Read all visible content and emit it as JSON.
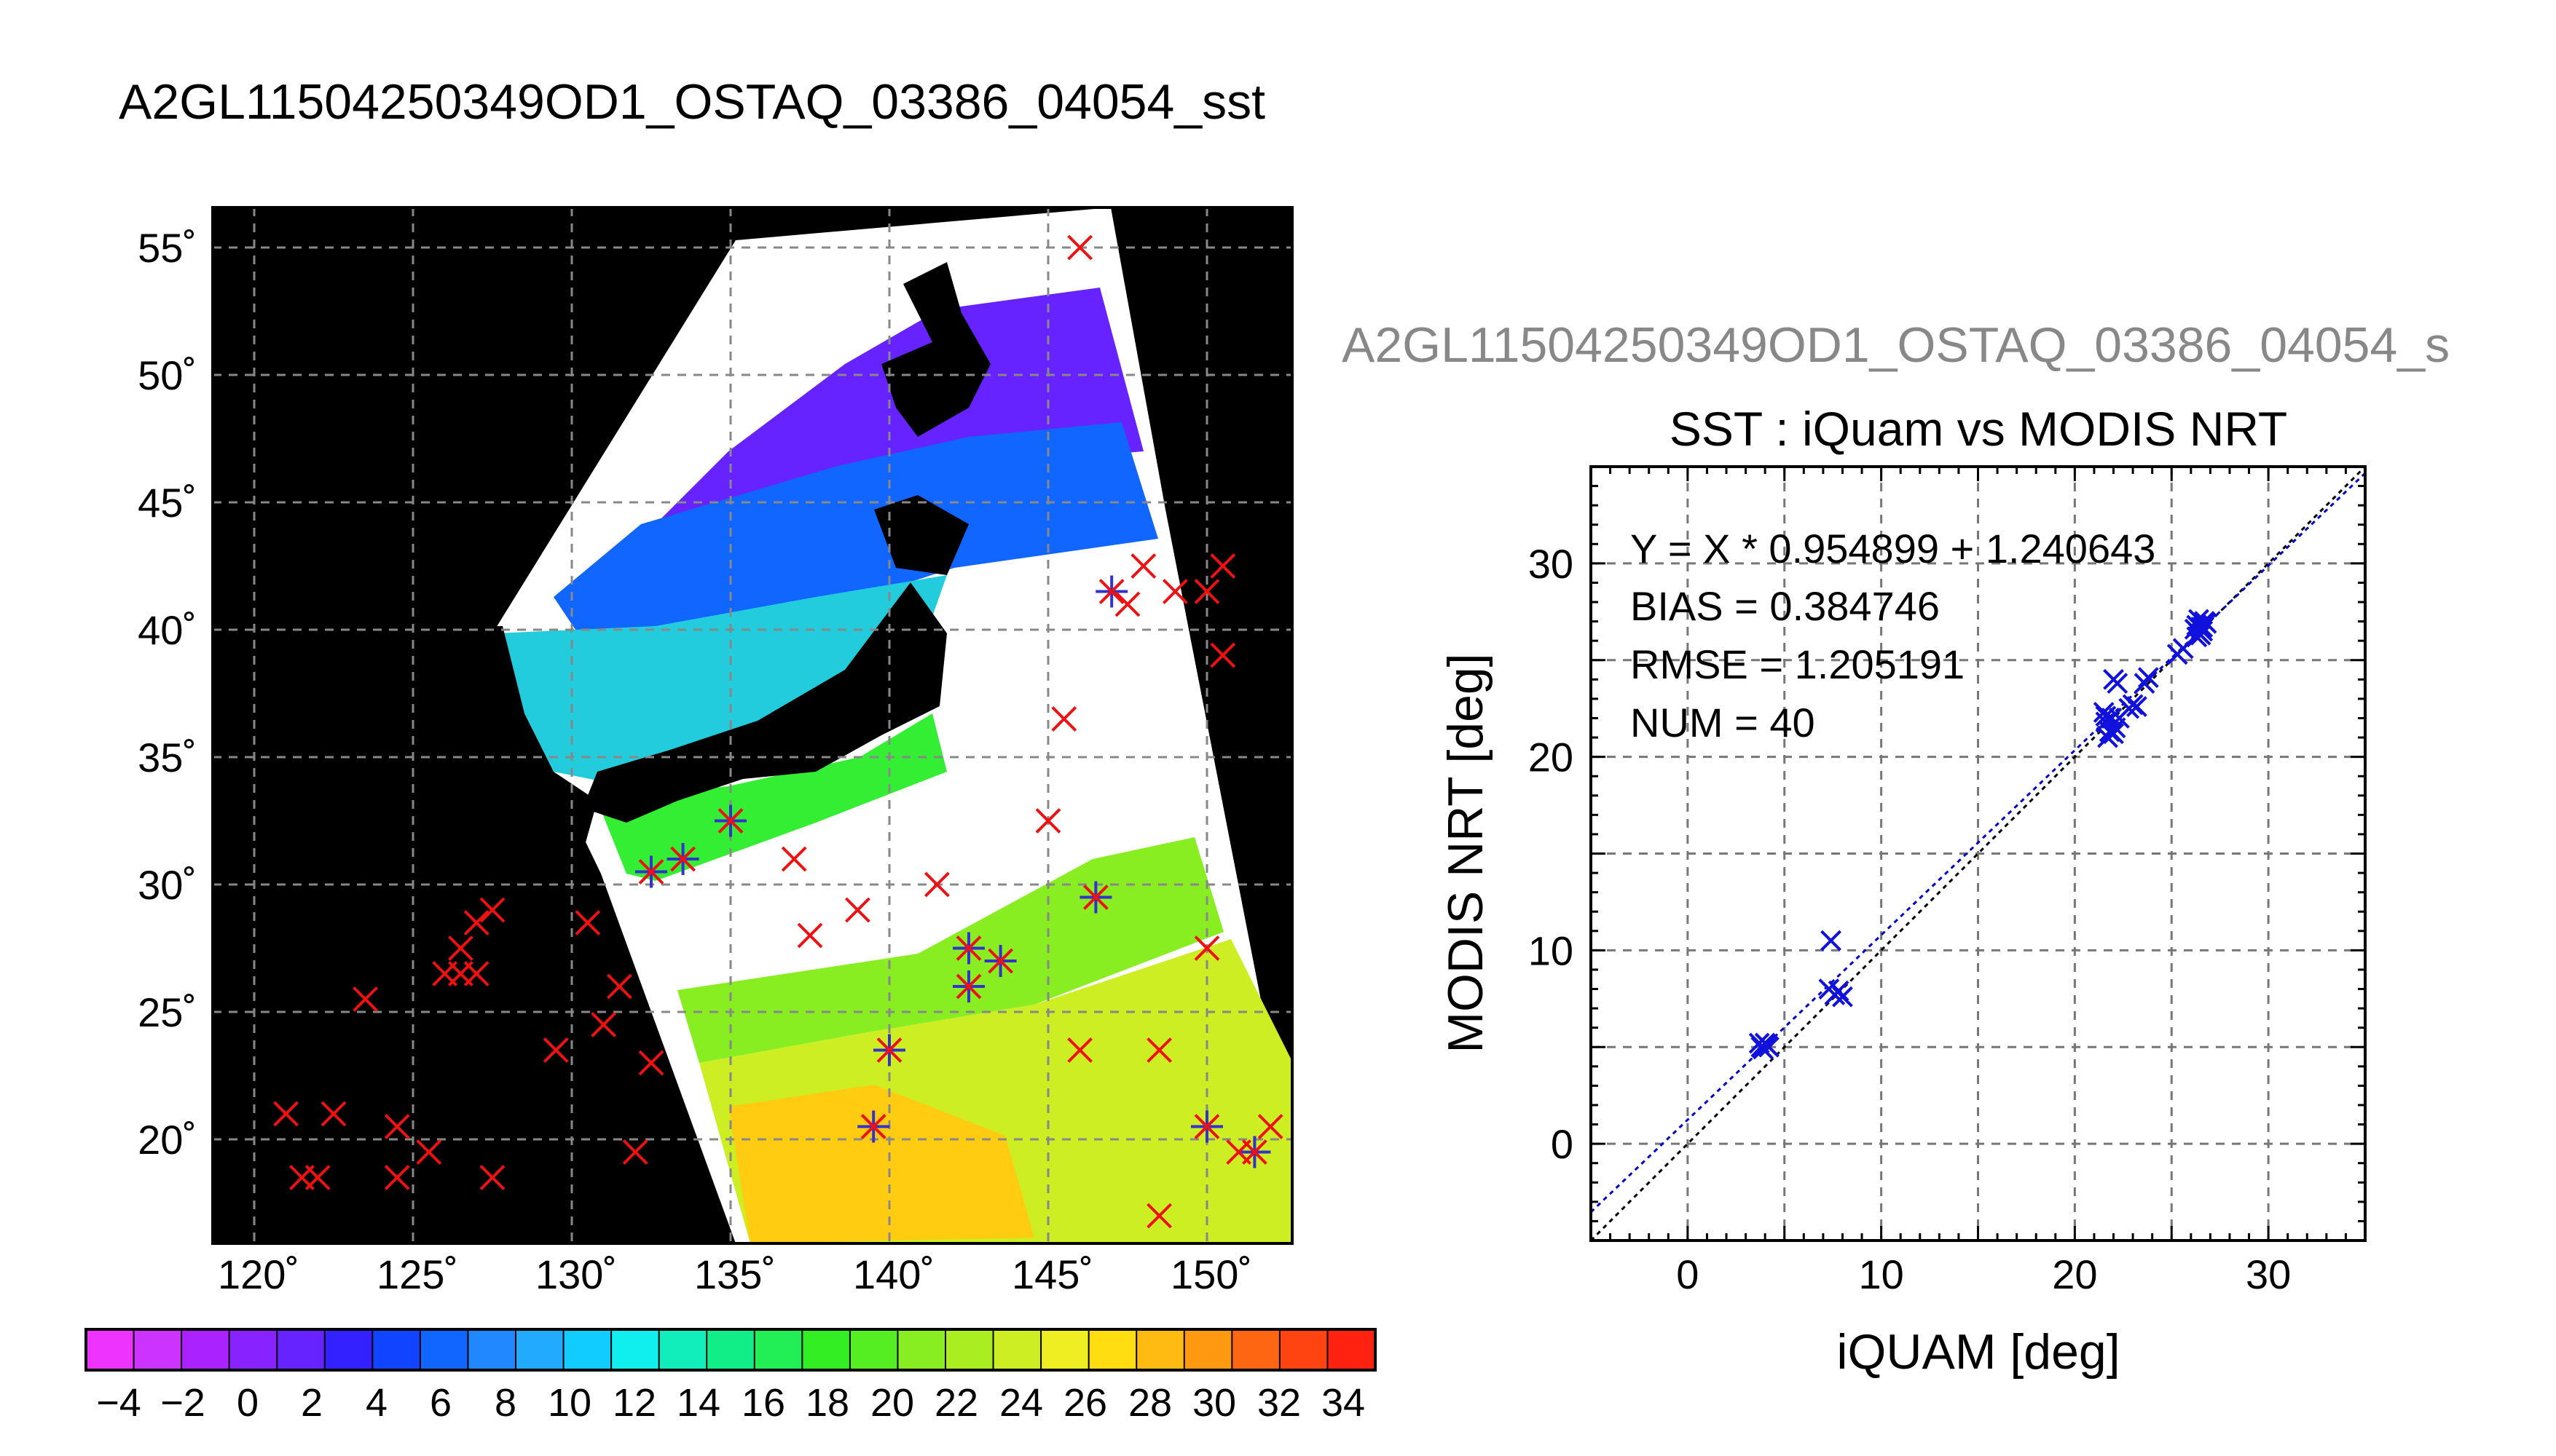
{
  "page": {
    "title": "A2GL11504250349OD1_OSTAQ_03386_04054_sst",
    "subtitle_cut": "A2GL11504250349OD1_OSTAQ_03386_04054_s"
  },
  "map": {
    "lat_labels": [
      "55˚",
      "50˚",
      "45˚",
      "40˚",
      "35˚",
      "30˚",
      "25˚",
      "20˚"
    ],
    "lon_labels": [
      "120˚",
      "125˚",
      "130˚",
      "135˚",
      "140˚",
      "145˚",
      "150˚"
    ],
    "match_ups_lonlat": [
      [
        146.0,
        55.0
      ],
      [
        147.0,
        41.5
      ],
      [
        147.5,
        41.0
      ],
      [
        148.0,
        42.5
      ],
      [
        149.0,
        41.5
      ],
      [
        150.0,
        41.5
      ],
      [
        150.5,
        42.5
      ],
      [
        150.5,
        39.0
      ],
      [
        145.5,
        36.5
      ],
      [
        145.0,
        32.5
      ],
      [
        135.0,
        32.5
      ],
      [
        137.0,
        31.0
      ],
      [
        133.5,
        31.0
      ],
      [
        132.5,
        30.5
      ],
      [
        139.0,
        29.0
      ],
      [
        141.5,
        30.0
      ],
      [
        146.5,
        29.5
      ],
      [
        130.5,
        28.5
      ],
      [
        137.5,
        28.0
      ],
      [
        127.5,
        29.0
      ],
      [
        127.0,
        28.5
      ],
      [
        126.5,
        27.5
      ],
      [
        126.0,
        26.5
      ],
      [
        126.5,
        26.5
      ],
      [
        127.0,
        26.5
      ],
      [
        131.5,
        26.0
      ],
      [
        142.5,
        27.5
      ],
      [
        143.5,
        27.0
      ],
      [
        142.5,
        26.0
      ],
      [
        150.0,
        27.5
      ],
      [
        123.5,
        25.5
      ],
      [
        131.0,
        24.5
      ],
      [
        129.5,
        23.5
      ],
      [
        140.0,
        23.5
      ],
      [
        146.0,
        23.5
      ],
      [
        148.5,
        23.5
      ],
      [
        132.5,
        23.0
      ],
      [
        121.0,
        21.0
      ],
      [
        122.5,
        21.0
      ],
      [
        124.5,
        20.5
      ],
      [
        125.5,
        19.5
      ],
      [
        124.5,
        18.5
      ],
      [
        121.5,
        18.5
      ],
      [
        122.0,
        18.5
      ],
      [
        127.5,
        18.5
      ],
      [
        132.0,
        19.5
      ],
      [
        139.5,
        20.5
      ],
      [
        150.0,
        20.5
      ],
      [
        151.0,
        19.5
      ],
      [
        151.5,
        19.5
      ],
      [
        152.0,
        20.5
      ],
      [
        148.5,
        17.0
      ]
    ],
    "star_lonlat": [
      [
        135.0,
        32.5
      ],
      [
        133.5,
        31.0
      ],
      [
        132.5,
        30.5
      ],
      [
        146.5,
        29.5
      ],
      [
        142.5,
        27.5
      ],
      [
        143.5,
        27.0
      ],
      [
        142.5,
        26.0
      ],
      [
        140.0,
        23.5
      ],
      [
        139.5,
        20.5
      ],
      [
        150.0,
        20.5
      ],
      [
        151.5,
        19.5
      ],
      [
        147.0,
        41.5
      ]
    ]
  },
  "colorbar": {
    "ticks": [
      "−4",
      "−2",
      "0",
      "2",
      "4",
      "6",
      "8",
      "10",
      "12",
      "14",
      "16",
      "18",
      "20",
      "22",
      "24",
      "26",
      "28",
      "30",
      "32",
      "34"
    ],
    "colors": [
      "#ee33ff",
      "#cc33ff",
      "#aa22ff",
      "#8822ff",
      "#6622ff",
      "#3322ff",
      "#1144ff",
      "#1166ff",
      "#2288ff",
      "#22aaff",
      "#11ccff",
      "#11eeee",
      "#11eebb",
      "#11ee88",
      "#22ee55",
      "#33ee22",
      "#55ee22",
      "#88ee22",
      "#aaee22",
      "#ccee22",
      "#eeee22",
      "#ffdd11",
      "#ffbb11",
      "#ff9911",
      "#ff6611",
      "#ff4411",
      "#ff2211"
    ]
  },
  "chart_data": {
    "type": "scatter",
    "title": "SST : iQuam vs MODIS NRT",
    "xlabel": "iQUAM [deg]",
    "ylabel": "MODIS NRT [deg]",
    "xlim": [
      -5,
      35
    ],
    "ylim": [
      -5,
      35
    ],
    "xticks": [
      0,
      10,
      20,
      30
    ],
    "yticks": [
      0,
      10,
      20,
      30
    ],
    "annotations": [
      "Y = X * 0.954899 + 1.240643",
      "BIAS = 0.384746",
      "RMSE = 1.205191",
      "NUM = 40"
    ],
    "fit": {
      "slope": 0.954899,
      "intercept": 1.240643
    },
    "grid": true,
    "points": [
      [
        3.8,
        5.0
      ],
      [
        4.0,
        5.2
      ],
      [
        4.2,
        5.0
      ],
      [
        3.9,
        4.9
      ],
      [
        4.1,
        5.1
      ],
      [
        3.7,
        5.2
      ],
      [
        7.4,
        10.5
      ],
      [
        7.3,
        8.0
      ],
      [
        7.6,
        7.7
      ],
      [
        7.8,
        7.9
      ],
      [
        8.0,
        7.6
      ],
      [
        21.5,
        22.3
      ],
      [
        21.6,
        21.8
      ],
      [
        21.8,
        21.3
      ],
      [
        21.7,
        21.0
      ],
      [
        22.0,
        21.2
      ],
      [
        22.1,
        21.5
      ],
      [
        21.9,
        22.0
      ],
      [
        22.0,
        24.0
      ],
      [
        22.2,
        23.8
      ],
      [
        22.8,
        22.5
      ],
      [
        23.0,
        22.7
      ],
      [
        23.6,
        23.8
      ],
      [
        23.8,
        24.1
      ],
      [
        25.3,
        25.3
      ],
      [
        25.6,
        25.6
      ],
      [
        26.3,
        26.8
      ],
      [
        26.4,
        27.1
      ],
      [
        26.5,
        26.3
      ],
      [
        26.6,
        26.7
      ],
      [
        26.7,
        27.0
      ],
      [
        26.3,
        26.2
      ],
      [
        26.6,
        26.5
      ],
      [
        26.8,
        26.9
      ],
      [
        26.5,
        26.7
      ],
      [
        26.2,
        26.6
      ],
      [
        22.3,
        22.0
      ],
      [
        21.6,
        22.1
      ],
      [
        23.2,
        22.6
      ],
      [
        26.4,
        26.4
      ]
    ]
  }
}
